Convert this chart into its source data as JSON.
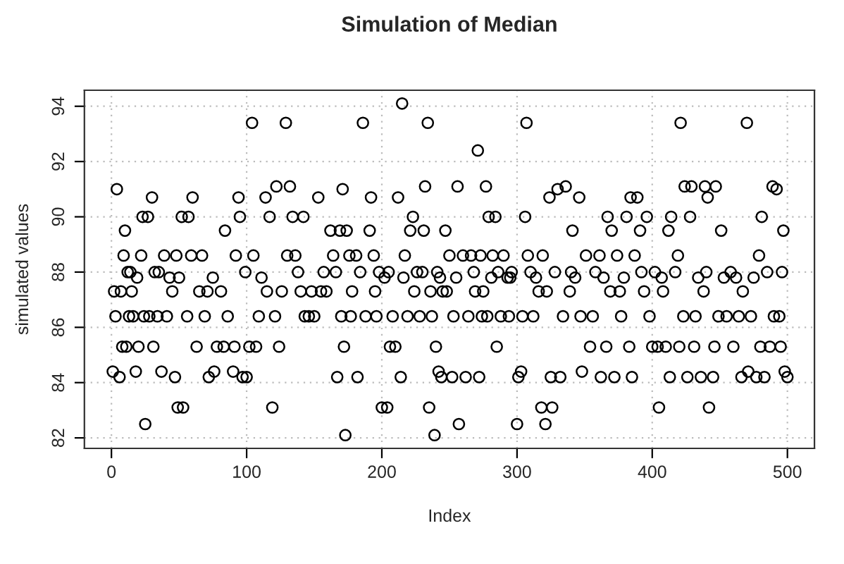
{
  "chart_data": {
    "type": "scatter",
    "title": "Simulation of Median",
    "xlabel": "Index",
    "ylabel": "simulated values",
    "xlim": [
      -20,
      520
    ],
    "ylim": [
      81.62,
      94.58
    ],
    "xticks": [
      0,
      100,
      200,
      300,
      400,
      500
    ],
    "yticks": [
      82,
      84,
      86,
      88,
      90,
      92,
      94
    ],
    "grid": true,
    "marker": "circle",
    "legend": false,
    "series": [
      {
        "color": "#000000",
        "x": [
          1,
          2,
          3,
          4,
          6,
          7,
          8,
          9,
          10,
          11,
          12,
          13,
          14,
          15,
          16,
          18,
          19,
          20,
          22,
          23,
          24,
          25,
          27,
          28,
          30,
          31,
          32,
          34,
          35,
          37,
          39,
          41,
          43,
          45,
          47,
          48,
          49,
          50,
          52,
          53,
          56,
          57,
          59,
          60,
          63,
          65,
          67,
          69,
          71,
          72,
          75,
          76,
          78,
          81,
          83,
          84,
          86,
          90,
          91,
          92,
          94,
          95,
          97,
          99,
          100,
          102,
          104,
          105,
          107,
          109,
          111,
          114,
          115,
          117,
          119,
          121,
          122,
          124,
          126,
          129,
          130,
          132,
          134,
          136,
          138,
          140,
          142,
          143,
          146,
          148,
          150,
          153,
          155,
          157,
          159,
          162,
          164,
          166,
          167,
          169,
          170,
          171,
          172,
          173,
          174,
          176,
          177,
          178,
          181,
          182,
          184,
          186,
          188,
          191,
          192,
          194,
          195,
          196,
          198,
          200,
          202,
          204,
          205,
          206,
          208,
          210,
          212,
          214,
          215,
          216,
          217,
          219,
          221,
          223,
          224,
          226,
          228,
          230,
          231,
          232,
          234,
          235,
          236,
          237,
          239,
          240,
          241,
          242,
          243,
          244,
          245,
          247,
          248,
          250,
          252,
          253,
          255,
          256,
          257,
          260,
          262,
          264,
          266,
          268,
          269,
          271,
          272,
          273,
          274,
          275,
          277,
          278,
          279,
          281,
          282,
          284,
          285,
          286,
          288,
          290,
          293,
          294,
          295,
          296,
          300,
          301,
          303,
          304,
          306,
          307,
          308,
          310,
          312,
          314,
          316,
          318,
          319,
          321,
          322,
          324,
          325,
          326,
          328,
          330,
          332,
          334,
          336,
          339,
          340,
          341,
          343,
          346,
          347,
          348,
          351,
          354,
          356,
          358,
          361,
          362,
          364,
          366,
          367,
          369,
          370,
          372,
          374,
          376,
          377,
          379,
          381,
          383,
          384,
          385,
          387,
          389,
          391,
          392,
          394,
          396,
          398,
          400,
          402,
          404,
          405,
          407,
          408,
          410,
          412,
          413,
          414,
          417,
          419,
          420,
          421,
          423,
          424,
          426,
          428,
          429,
          431,
          432,
          434,
          436,
          438,
          439,
          440,
          441,
          442,
          445,
          446,
          447,
          449,
          451,
          453,
          455,
          458,
          460,
          462,
          464,
          466,
          467,
          470,
          471,
          473,
          475,
          477,
          479,
          480,
          481,
          483,
          485,
          487,
          489,
          490,
          492,
          494,
          495,
          496,
          497,
          498,
          500
        ],
        "values": [
          84.4,
          87.3,
          86.4,
          91.0,
          84.2,
          87.3,
          85.3,
          88.6,
          89.5,
          85.3,
          88.0,
          86.4,
          88.0,
          87.3,
          86.4,
          84.4,
          87.8,
          85.3,
          88.6,
          90.0,
          86.4,
          82.5,
          90.0,
          86.4,
          90.7,
          85.3,
          88.0,
          86.4,
          88.0,
          84.4,
          88.6,
          86.4,
          87.8,
          87.3,
          84.2,
          88.6,
          83.1,
          87.8,
          90.0,
          83.1,
          86.4,
          90.0,
          88.6,
          90.7,
          85.3,
          87.3,
          88.6,
          86.4,
          87.3,
          84.2,
          87.8,
          84.4,
          85.3,
          87.3,
          85.3,
          89.5,
          86.4,
          84.4,
          85.3,
          88.6,
          90.7,
          90.0,
          84.2,
          88.0,
          84.2,
          85.3,
          93.4,
          88.6,
          85.3,
          86.4,
          87.8,
          90.7,
          87.3,
          90.0,
          83.1,
          86.4,
          91.1,
          85.3,
          87.3,
          93.4,
          88.6,
          91.1,
          90.0,
          88.6,
          88.0,
          87.3,
          90.0,
          86.4,
          86.4,
          87.3,
          86.4,
          90.7,
          87.3,
          88.0,
          87.3,
          89.5,
          88.6,
          88.0,
          84.2,
          89.5,
          86.4,
          91.0,
          85.3,
          82.1,
          89.5,
          88.6,
          86.4,
          87.3,
          88.6,
          84.2,
          88.0,
          93.4,
          86.4,
          89.5,
          90.7,
          88.6,
          87.3,
          86.4,
          88.0,
          83.1,
          87.8,
          83.1,
          88.0,
          85.3,
          86.4,
          85.3,
          90.7,
          84.2,
          94.1,
          87.8,
          88.6,
          86.4,
          89.5,
          90.0,
          87.3,
          88.0,
          86.4,
          88.0,
          89.5,
          91.1,
          93.4,
          83.1,
          87.3,
          86.4,
          82.1,
          85.3,
          88.0,
          84.4,
          87.8,
          84.2,
          87.3,
          89.5,
          87.3,
          88.6,
          84.2,
          86.4,
          87.8,
          91.1,
          82.5,
          88.6,
          84.2,
          86.4,
          88.6,
          88.0,
          87.3,
          92.4,
          84.2,
          88.6,
          86.4,
          87.3,
          91.1,
          86.4,
          90.0,
          87.8,
          88.6,
          90.0,
          85.3,
          88.0,
          86.4,
          88.6,
          87.8,
          86.4,
          87.8,
          88.0,
          82.5,
          84.2,
          84.4,
          86.4,
          90.0,
          93.4,
          88.6,
          88.0,
          86.4,
          87.8,
          87.3,
          83.1,
          88.6,
          82.5,
          87.3,
          90.7,
          84.2,
          83.1,
          88.0,
          91.0,
          84.2,
          86.4,
          91.1,
          87.3,
          88.0,
          89.5,
          87.8,
          90.7,
          86.4,
          84.4,
          88.6,
          85.3,
          86.4,
          88.0,
          88.6,
          84.2,
          87.8,
          85.3,
          90.0,
          87.3,
          89.5,
          84.2,
          88.6,
          87.3,
          86.4,
          87.8,
          90.0,
          85.3,
          90.7,
          84.2,
          88.6,
          90.7,
          89.5,
          88.0,
          87.3,
          90.0,
          86.4,
          85.3,
          88.0,
          85.3,
          83.1,
          87.8,
          87.3,
          85.3,
          89.5,
          84.2,
          90.0,
          88.0,
          88.6,
          85.3,
          93.4,
          86.4,
          91.1,
          84.2,
          90.0,
          91.1,
          85.3,
          86.4,
          87.8,
          84.2,
          87.3,
          91.1,
          88.0,
          90.7,
          83.1,
          84.2,
          85.3,
          91.1,
          86.4,
          89.5,
          87.8,
          86.4,
          88.0,
          85.3,
          87.8,
          86.4,
          84.2,
          87.3,
          93.4,
          84.4,
          86.4,
          87.8,
          84.2,
          88.6,
          85.3,
          90.0,
          84.2,
          88.0,
          85.3,
          91.1,
          86.4,
          91.0,
          86.4,
          85.3,
          88.0,
          89.5,
          84.4,
          84.2
        ]
      }
    ]
  }
}
